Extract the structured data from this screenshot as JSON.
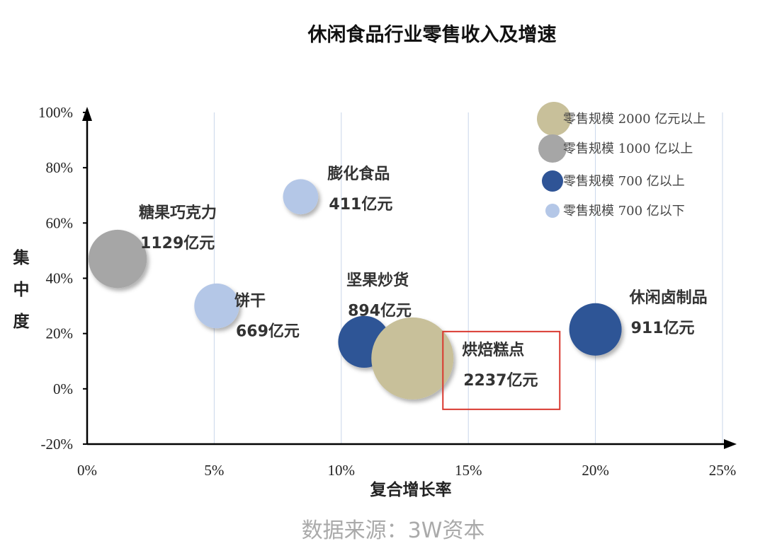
{
  "chart_data": {
    "type": "bubble",
    "title": "休闲食品行业零售收入及增速",
    "xlabel": "复合增长率",
    "ylabel": "集中度",
    "xlim": [
      0,
      25
    ],
    "ylim": [
      -20,
      100
    ],
    "x_ticks": [
      "0%",
      "5%",
      "10%",
      "15%",
      "20%",
      "25%"
    ],
    "y_ticks": [
      "100%",
      "80%",
      "60%",
      "40%",
      "20%",
      "0%",
      "-20%"
    ],
    "grid": "vertical",
    "legend_position": "top-right",
    "legend": [
      {
        "label": "零售规模 2000 亿元以上",
        "color": "#c8c09a"
      },
      {
        "label": "零售规模 1000 亿以上",
        "color": "#a6a6a6"
      },
      {
        "label": "零售规模 700 亿以上",
        "color": "#2f5496"
      },
      {
        "label": "零售规模 700 亿以下",
        "color": "#b4c7e7"
      }
    ],
    "points": [
      {
        "name": "糖果巧克力",
        "value_label": "1129亿元",
        "x": 1.2,
        "y": 47,
        "size": 1129,
        "color": "#a6a6a6"
      },
      {
        "name": "膨化食品",
        "value_label": "411亿元",
        "x": 8.4,
        "y": 69.5,
        "size": 411,
        "color": "#b4c7e7"
      },
      {
        "name": "饼干",
        "value_label": "669亿元",
        "x": 5.1,
        "y": 30,
        "size": 669,
        "color": "#b4c7e7"
      },
      {
        "name": "坚果炒货",
        "value_label": "894亿元",
        "x": 10.9,
        "y": 17,
        "size": 894,
        "color": "#2f5496"
      },
      {
        "name": "烘焙糕点",
        "value_label": "2237亿元",
        "x": 12.8,
        "y": 11,
        "size": 2237,
        "color": "#c8c09a",
        "highlighted": true
      },
      {
        "name": "休闲卤制品",
        "value_label": "911亿元",
        "x": 20,
        "y": 21.5,
        "size": 911,
        "color": "#2f5496"
      }
    ],
    "highlight_color": "#d9382f"
  },
  "source": "数据来源：3W资本"
}
